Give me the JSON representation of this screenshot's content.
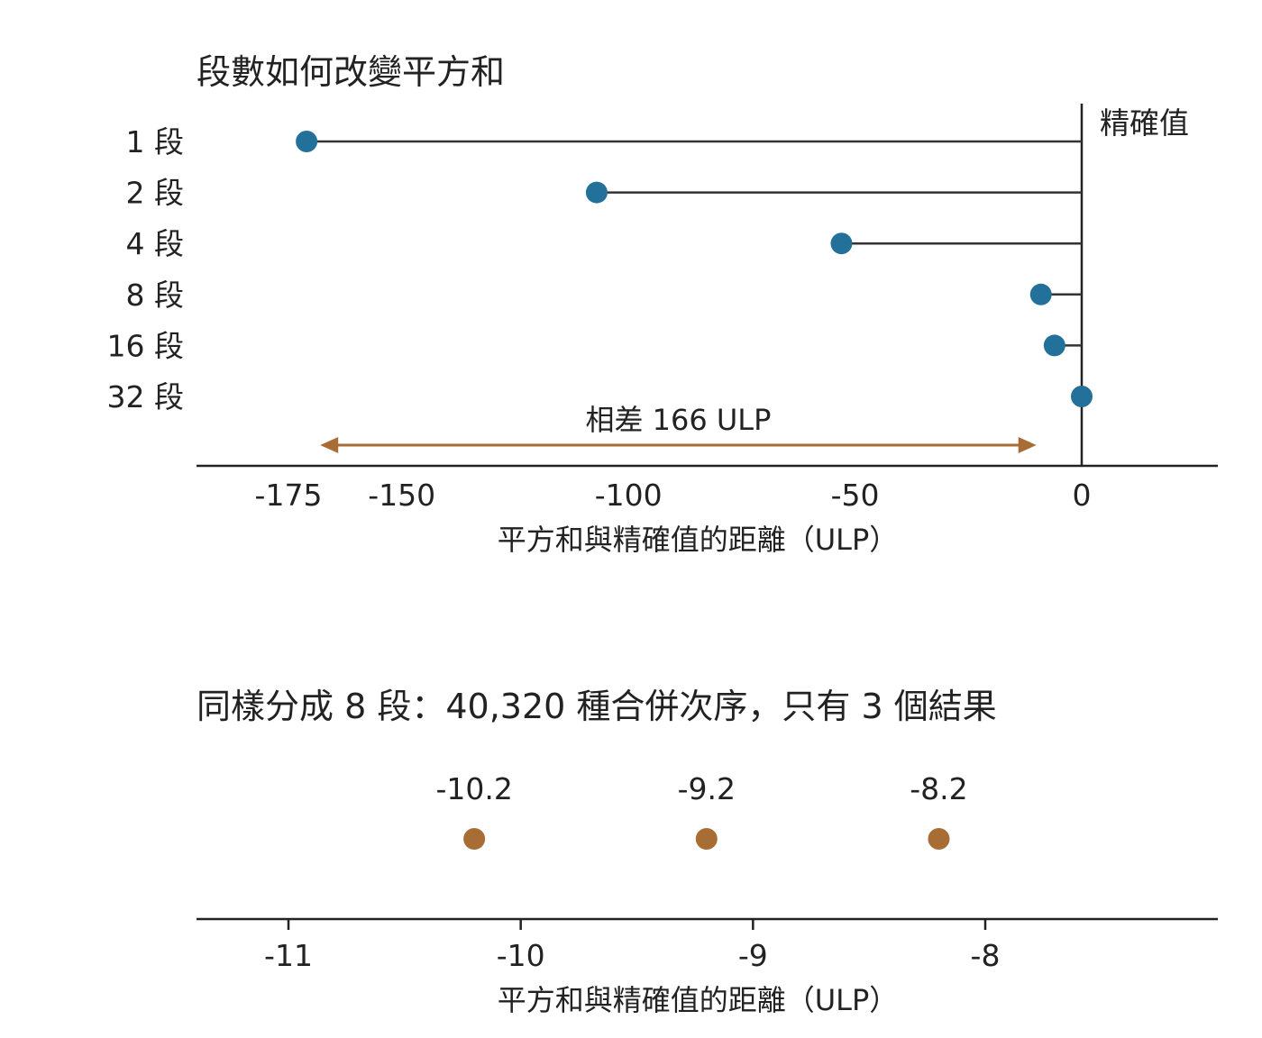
{
  "chart_data": [
    {
      "type": "lollipop",
      "title": "段數如何改變平方和",
      "xlabel": "平方和與精確值的距離（ULP）",
      "xlim": [
        -188,
        29
      ],
      "xticks": [
        {
          "value": -175,
          "label": "-175"
        },
        {
          "value": -150,
          "label": "-150"
        },
        {
          "value": -100,
          "label": "-100"
        },
        {
          "value": -50,
          "label": "-50"
        },
        {
          "value": 0,
          "label": "0"
        }
      ],
      "reference": {
        "value": 0,
        "label": "精確值"
      },
      "categories": [
        "1 段",
        "2 段",
        "4 段",
        "8 段",
        "16 段",
        "32 段"
      ],
      "values": [
        -171,
        -107,
        -53,
        -9,
        -6,
        0
      ],
      "annotation": {
        "text": "相差 166 ULP",
        "from": -168,
        "to": -10
      },
      "colors": {
        "marker": "#23719a",
        "stem": "#333333",
        "arrow": "#a86d34"
      }
    },
    {
      "type": "scatter",
      "title": "同樣分成 8 段：40,320 種合併次序，只有 3 個結果",
      "xlabel": "平方和與精確值的距離（ULP）",
      "xlim": [
        -11.4,
        -6.6
      ],
      "xticks": [
        {
          "value": -11,
          "label": "-11"
        },
        {
          "value": -10,
          "label": "-10"
        },
        {
          "value": -9,
          "label": "-9"
        },
        {
          "value": -8,
          "label": "-8"
        }
      ],
      "points": [
        {
          "x": -10.2,
          "label": "-10.2"
        },
        {
          "x": -9.2,
          "label": "-9.2"
        },
        {
          "x": -8.2,
          "label": "-8.2"
        }
      ],
      "colors": {
        "marker": "#a86d34"
      }
    }
  ]
}
